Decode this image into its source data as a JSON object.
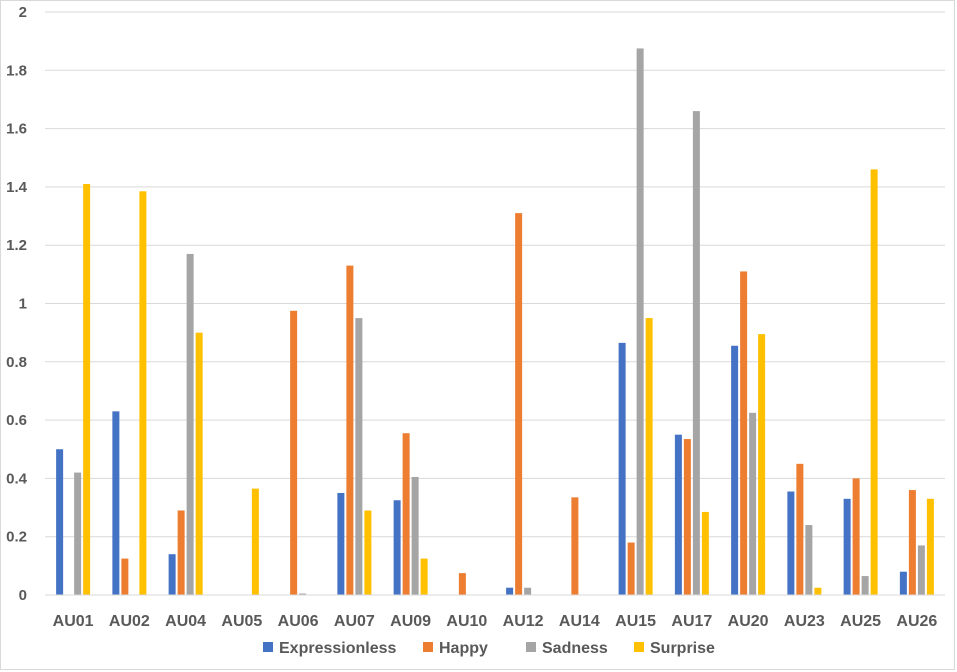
{
  "chart_data": {
    "type": "bar",
    "title": "",
    "xlabel": "",
    "ylabel": "",
    "ylim": [
      0,
      2
    ],
    "yticks": [
      "0",
      "0.2",
      "0.4",
      "0.6",
      "0.8",
      "1",
      "1.2",
      "1.4",
      "1.6",
      "1.8",
      "2"
    ],
    "grid": true,
    "legend_position": "bottom",
    "categories": [
      "AU01",
      "AU02",
      "AU04",
      "AU05",
      "AU06",
      "AU07",
      "AU09",
      "AU10",
      "AU12",
      "AU14",
      "AU15",
      "AU17",
      "AU20",
      "AU23",
      "AU25",
      "AU26"
    ],
    "series": [
      {
        "name": "Expressionless",
        "color": "#4472c4",
        "values": [
          0.5,
          0.63,
          0.14,
          0,
          0,
          0.35,
          0.325,
          0,
          0.025,
          0,
          0.865,
          0.55,
          0.855,
          0.355,
          0.33,
          0.08
        ]
      },
      {
        "name": "Happy",
        "color": "#ed7d31",
        "values": [
          0,
          0.125,
          0.29,
          0,
          0.975,
          1.13,
          0.555,
          0.075,
          1.31,
          0.335,
          0.18,
          0.535,
          1.11,
          0.45,
          0.4,
          0.36
        ]
      },
      {
        "name": "Sadness",
        "color": "#a5a5a5",
        "values": [
          0.42,
          0,
          1.17,
          0,
          0.005,
          0.95,
          0.405,
          0,
          0.025,
          0,
          1.875,
          1.66,
          0.625,
          0.24,
          0.065,
          0.17
        ]
      },
      {
        "name": "Surprise",
        "color": "#ffc000",
        "values": [
          1.41,
          1.385,
          0.9,
          0.365,
          0,
          0.29,
          0.125,
          0,
          0,
          0,
          0.95,
          0.285,
          0.895,
          0.025,
          1.46,
          0.33
        ]
      }
    ]
  }
}
